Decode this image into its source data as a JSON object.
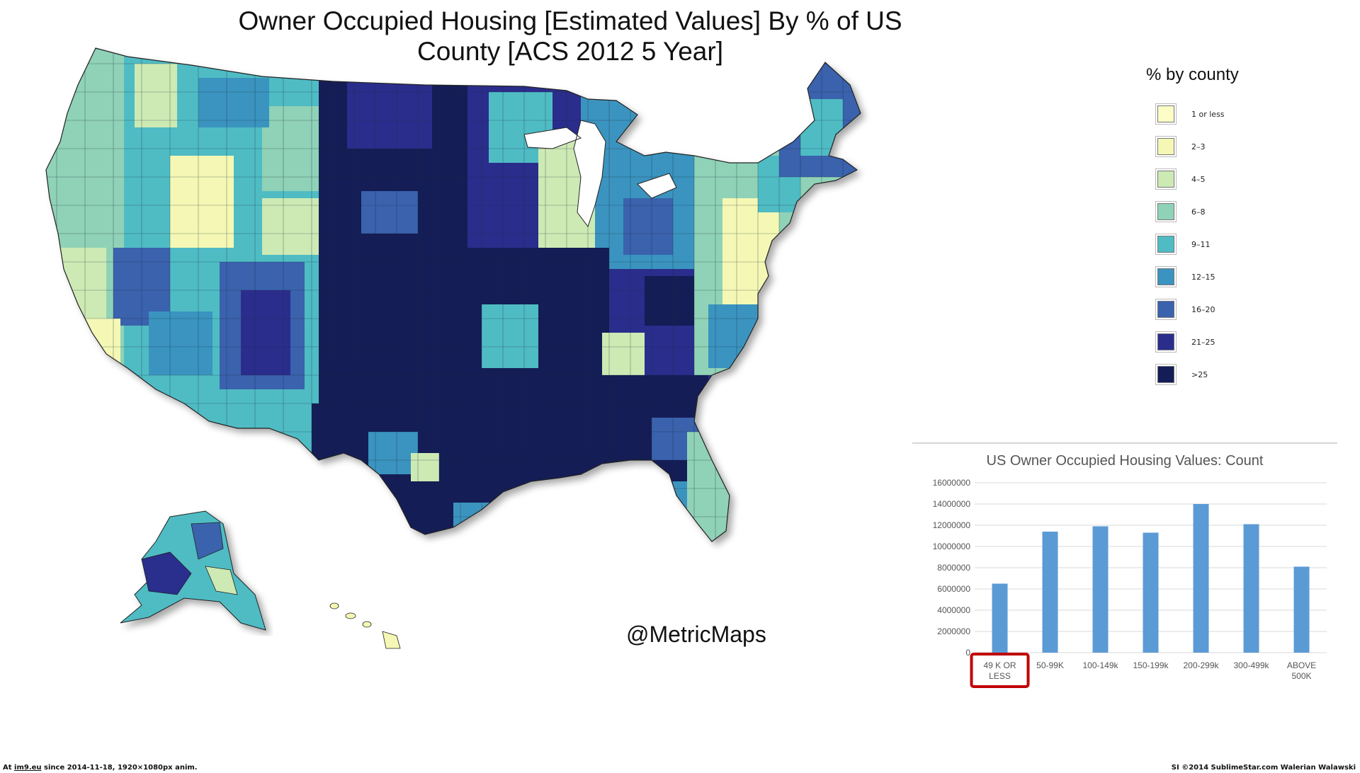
{
  "title": "Owner Occupied Housing [Estimated Values] By % of  US County [ACS 2012 5 Year]",
  "legend": {
    "title": "% by county",
    "items": [
      {
        "label": "1 or less",
        "color": "#fdfdc8"
      },
      {
        "label": "2–3",
        "color": "#f4f8b4"
      },
      {
        "label": "4–5",
        "color": "#cdeab4"
      },
      {
        "label": "6–8",
        "color": "#8fd2b7"
      },
      {
        "label": "9–11",
        "color": "#4fbcc4"
      },
      {
        "label": "12–15",
        "color": "#3a94bf"
      },
      {
        "label": "16–20",
        "color": "#3a62ad"
      },
      {
        "label": "21–25",
        "color": "#2b2d8c"
      },
      {
        "label": ">25",
        "color": "#141d55"
      }
    ]
  },
  "watermark": "@MetricMaps",
  "chart_data": {
    "type": "bar",
    "title": "US Owner Occupied Housing Values:  Count",
    "categories": [
      "49 K OR LESS",
      "50-99K",
      "100-149k",
      "150-199k",
      "200-299k",
      "300-499k",
      "ABOVE 500K"
    ],
    "values": [
      6500000,
      11400000,
      11900000,
      11300000,
      14000000,
      12100000,
      8100000
    ],
    "ylim": [
      0,
      16000000
    ],
    "yticks": [
      "0",
      "2000000",
      "4000000",
      "6000000",
      "8000000",
      "10000000",
      "12000000",
      "14000000",
      "16000000"
    ],
    "bar_color": "#5b9bd5",
    "highlight_category": "49 K OR LESS",
    "highlight_color": "#c00000",
    "grid": true
  },
  "footer": {
    "left_prefix": "At ",
    "left_link": "im9.eu",
    "left_suffix": " since 2014-11-18, 1920×1080px anim.",
    "right": "SI ©2014 SublimeStar.com Walerian Walawski"
  }
}
